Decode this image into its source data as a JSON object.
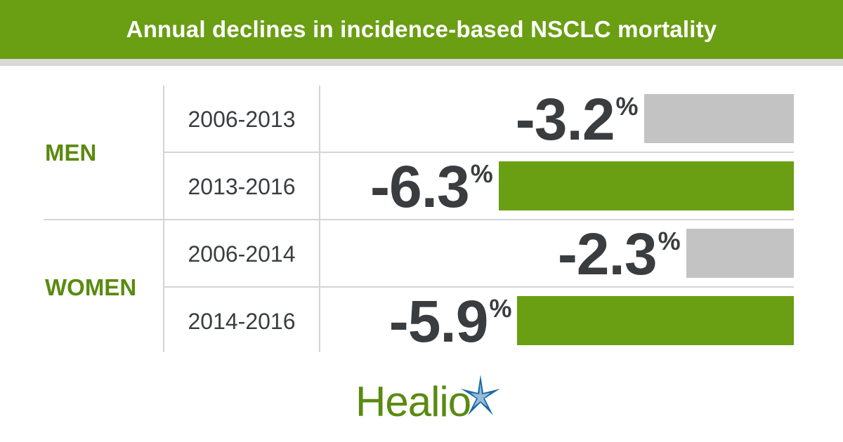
{
  "header": {
    "title": "Annual declines in incidence-based NSCLC mortality"
  },
  "colors": {
    "green": "#6a9e13",
    "gray_bar": "#c3c3c3",
    "text_dark": "#3a3d40",
    "label_green": "#5a8a10",
    "logo_blue": "#1a6aa8"
  },
  "chart_data": {
    "type": "bar",
    "orientation": "horizontal",
    "title": "Annual declines in incidence-based NSCLC mortality",
    "unit": "%",
    "groups": [
      {
        "name": "MEN",
        "rows": [
          {
            "period": "2006-2013",
            "value": -3.2,
            "label": "-3.2",
            "color": "gray"
          },
          {
            "period": "2013-2016",
            "value": -6.3,
            "label": "-6.3",
            "color": "green"
          }
        ]
      },
      {
        "name": "WOMEN",
        "rows": [
          {
            "period": "2006-2014",
            "value": -2.3,
            "label": "-2.3",
            "color": "gray"
          },
          {
            "period": "2014-2016",
            "value": -5.9,
            "label": "-5.9",
            "color": "green"
          }
        ]
      }
    ],
    "percent_sign": "%"
  },
  "logo": {
    "text": "Healio",
    "icon": "star-burst-icon"
  }
}
